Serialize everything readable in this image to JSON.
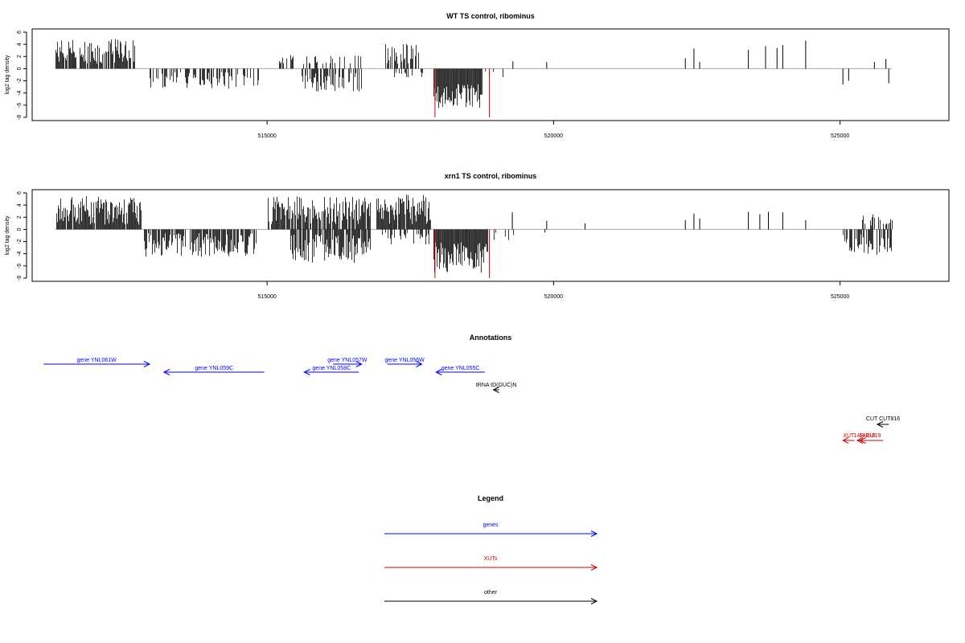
{
  "chart_data": [
    {
      "type": "bar",
      "title": "WT TS control, ribominus",
      "ylabel": "log2 tag density",
      "xlim": [
        510900,
        526900
      ],
      "ylim": [
        -8,
        6
      ],
      "yticks": [
        -8,
        -6,
        -4,
        -2,
        0,
        2,
        4,
        6
      ],
      "xticks": [
        515000,
        520000,
        525000
      ],
      "xtick_labels": [
        "515000",
        "520000",
        "525000"
      ],
      "baseline_color": "#aaaaaa",
      "highlight_color": "#cc0000",
      "segments": [
        {
          "from": 511300,
          "to": 512700,
          "sign": 1,
          "min": 0.8,
          "max": 4.9,
          "density": 0.85
        },
        {
          "from": 512950,
          "to": 514850,
          "sign": -1,
          "min": 0.6,
          "max": 3.3,
          "density": 0.45
        },
        {
          "from": 515200,
          "to": 516700,
          "sign": 1,
          "min": 0.6,
          "max": 2.4,
          "density": 0.25
        },
        {
          "from": 515600,
          "to": 516650,
          "sign": -1,
          "min": 0.7,
          "max": 3.8,
          "density": 0.55
        },
        {
          "from": 517050,
          "to": 517650,
          "sign": 1,
          "min": 0.8,
          "max": 4.2,
          "density": 0.7
        },
        {
          "from": 517200,
          "to": 517700,
          "sign": -1,
          "min": 0.5,
          "max": 1.5,
          "density": 0.25
        },
        {
          "from": 517900,
          "to": 518750,
          "sign": -1,
          "min": 2.5,
          "max": 6.6,
          "density": 1.0
        },
        {
          "from": 518780,
          "to": 519300,
          "sign": -1,
          "min": 0.4,
          "max": 2.4,
          "density": 0.12
        }
      ],
      "spikes": [
        {
          "x": 519880,
          "y": 1.1
        },
        {
          "x": 519290,
          "y": 1.2
        },
        {
          "x": 522300,
          "y": 1.7
        },
        {
          "x": 522450,
          "y": 3.3
        },
        {
          "x": 522550,
          "y": 1.1
        },
        {
          "x": 523400,
          "y": 3.1
        },
        {
          "x": 523700,
          "y": 3.7
        },
        {
          "x": 523900,
          "y": 3.4
        },
        {
          "x": 524000,
          "y": 3.9
        },
        {
          "x": 524400,
          "y": 4.6
        },
        {
          "x": 525050,
          "y": -2.6
        },
        {
          "x": 525150,
          "y": -2.0
        },
        {
          "x": 525600,
          "y": 1.1
        },
        {
          "x": 525800,
          "y": 1.6
        },
        {
          "x": 525850,
          "y": -2.4
        }
      ],
      "red_lines": [
        517930,
        518880
      ]
    },
    {
      "type": "bar",
      "title": "xrn1 TS control, ribominus",
      "ylabel": "log2 tag density",
      "xlim": [
        510900,
        526900
      ],
      "ylim": [
        -8,
        6
      ],
      "yticks": [
        -8,
        -6,
        -4,
        -2,
        0,
        2,
        4,
        6
      ],
      "xticks": [
        515000,
        520000,
        525000
      ],
      "xtick_labels": [
        "515000",
        "520000",
        "525000"
      ],
      "baseline_color": "#aaaaaa",
      "highlight_color": "#cc0000",
      "segments": [
        {
          "from": 511300,
          "to": 512800,
          "sign": 1,
          "min": 0.8,
          "max": 5.5,
          "density": 0.95
        },
        {
          "from": 512850,
          "to": 514800,
          "sign": -1,
          "min": 0.6,
          "max": 4.5,
          "density": 0.75
        },
        {
          "from": 515000,
          "to": 516800,
          "sign": 1,
          "min": 0.8,
          "max": 5.5,
          "density": 0.9
        },
        {
          "from": 515400,
          "to": 516800,
          "sign": -1,
          "min": 0.8,
          "max": 5.5,
          "density": 0.8
        },
        {
          "from": 516900,
          "to": 517850,
          "sign": 1,
          "min": 0.8,
          "max": 5.8,
          "density": 0.9
        },
        {
          "from": 517000,
          "to": 517850,
          "sign": -1,
          "min": 0.5,
          "max": 2.5,
          "density": 0.35
        },
        {
          "from": 517900,
          "to": 518850,
          "sign": -1,
          "min": 2.0,
          "max": 7.2,
          "density": 1.0
        },
        {
          "from": 518850,
          "to": 519300,
          "sign": -1,
          "min": 0.4,
          "max": 2.2,
          "density": 0.15
        },
        {
          "from": 525050,
          "to": 525900,
          "sign": -1,
          "min": 0.8,
          "max": 4.2,
          "density": 0.6
        },
        {
          "from": 525350,
          "to": 525900,
          "sign": 1,
          "min": 0.6,
          "max": 2.6,
          "density": 0.4
        }
      ],
      "spikes": [
        {
          "x": 519280,
          "y": 2.8
        },
        {
          "x": 519880,
          "y": 1.4
        },
        {
          "x": 519850,
          "y": -0.5
        },
        {
          "x": 520550,
          "y": 1.0
        },
        {
          "x": 522300,
          "y": 1.5
        },
        {
          "x": 522450,
          "y": 2.6
        },
        {
          "x": 522550,
          "y": 1.8
        },
        {
          "x": 523400,
          "y": 2.9
        },
        {
          "x": 523600,
          "y": 2.5
        },
        {
          "x": 523750,
          "y": 2.9
        },
        {
          "x": 524000,
          "y": 2.8
        },
        {
          "x": 524400,
          "y": 1.5
        }
      ],
      "red_lines": [
        517930,
        518880
      ]
    }
  ],
  "annotations": {
    "title": "Annotations",
    "xlim": [
      510900,
      526900
    ],
    "items": [
      {
        "label": "gene YNL061W",
        "from": 511100,
        "to": 512950,
        "dir": "right",
        "row": 1,
        "color": "#0000ff"
      },
      {
        "label": "gene YNL059C",
        "from": 513200,
        "to": 514950,
        "dir": "left",
        "row": 2,
        "color": "#0000ff"
      },
      {
        "label": "gene YNL057W",
        "from": 516150,
        "to": 516650,
        "dir": "right",
        "row": 1,
        "color": "#0000ff"
      },
      {
        "label": "gene YNL058C",
        "from": 515650,
        "to": 516600,
        "dir": "left",
        "row": 2,
        "color": "#0000ff"
      },
      {
        "label": "gene YNL056W",
        "from": 517100,
        "to": 517700,
        "dir": "right",
        "row": 1,
        "color": "#0000ff"
      },
      {
        "label": "gene YNL055C",
        "from": 517950,
        "to": 518800,
        "dir": "left",
        "row": 2,
        "color": "#0000ff"
      },
      {
        "label": "tRNA tD(GUC)N",
        "from": 518950,
        "to": 519050,
        "dir": "left",
        "row": 3,
        "color": "#000000"
      },
      {
        "label": "CUT CUT816",
        "from": 525650,
        "to": 525850,
        "dir": "left",
        "row": 4,
        "color": "#000000"
      },
      {
        "label": "XUT",
        "from": 525050,
        "to": 525250,
        "dir": "left",
        "row": 5,
        "color": "#cc0000"
      },
      {
        "label": "14R-219",
        "from": 525300,
        "to": 525750,
        "dir": "left",
        "row": 5,
        "color": "#cc0000"
      },
      {
        "label": "14R-218",
        "from": 525350,
        "to": 525500,
        "dir": "left",
        "row": 5,
        "color": "#cc0000"
      }
    ]
  },
  "legend": {
    "title": "Legend",
    "items": [
      {
        "label": "genes",
        "color": "#0000ff"
      },
      {
        "label": "XUTs",
        "color": "#cc0000"
      },
      {
        "label": "other",
        "color": "#000000"
      }
    ]
  }
}
